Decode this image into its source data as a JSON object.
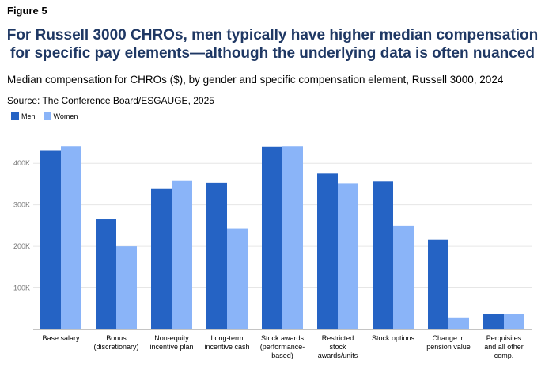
{
  "figure_label": "Figure 5",
  "headline": [
    "For Russell 3000 CHROs, men typically have higher median compensation",
    "for specific pay elements—although the underlying data is often nuanced"
  ],
  "subtitle": "Median compensation for CHROs ($), by gender and specific compensation element, Russell 3000, 2024",
  "source": "Source: The Conference Board/ESGAUGE, 2025",
  "colors": {
    "men": "#2563c4",
    "women": "#8ab4f8",
    "grid": "#e6e6e6",
    "axis": "#888888",
    "tick_text": "#777777"
  },
  "chart_data": {
    "type": "bar",
    "categories": [
      [
        "Base salary"
      ],
      [
        "Bonus",
        "(discretionary)"
      ],
      [
        "Non-equity",
        "incentive plan"
      ],
      [
        "Long-term",
        "incentive cash"
      ],
      [
        "Stock awards",
        "(performance-",
        "based)"
      ],
      [
        "Restricted",
        "stock",
        "awards/units"
      ],
      [
        "Stock options"
      ],
      [
        "Change in",
        "pension value"
      ],
      [
        "Perquisites",
        "and all other",
        "comp."
      ]
    ],
    "series": [
      {
        "name": "Men",
        "values": [
          430000,
          265000,
          338000,
          353000,
          439000,
          375000,
          356000,
          216000,
          37000
        ]
      },
      {
        "name": "Women",
        "values": [
          440000,
          200000,
          359000,
          243000,
          440000,
          352000,
          250000,
          29000,
          37000
        ]
      }
    ],
    "ylim": [
      0,
      450000
    ],
    "yticks": [
      100000,
      200000,
      300000,
      400000
    ],
    "ytick_labels": [
      "100K",
      "200K",
      "300K",
      "400K"
    ],
    "legend": "top-left",
    "grid": true
  }
}
